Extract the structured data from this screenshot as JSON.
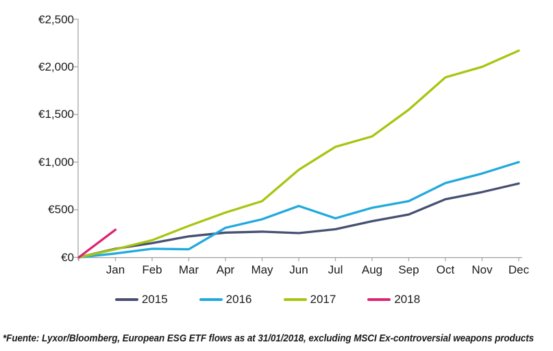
{
  "chart_data": {
    "type": "line",
    "title": "",
    "xlabel": "",
    "ylabel": "",
    "grid": false,
    "legend_position": "bottom",
    "x_labels": [
      "",
      "Jan",
      "Feb",
      "Mar",
      "Apr",
      "May",
      "Jun",
      "Jul",
      "Aug",
      "Sep",
      "Oct",
      "Nov",
      "Dec"
    ],
    "y_axis": {
      "tick_labels_top_down": [
        "€2,500",
        "€2,000",
        "€1,500",
        "€1,000",
        "€500",
        "€0"
      ],
      "ylim": [
        0,
        2500
      ],
      "tick_step": 500
    },
    "axis_color": "#A6A6A6",
    "series": [
      {
        "name": "2015",
        "color": "#474F72",
        "values": [
          0,
          90,
          150,
          220,
          260,
          270,
          255,
          295,
          380,
          450,
          610,
          685,
          775
        ]
      },
      {
        "name": "2016",
        "color": "#22A9DC",
        "values": [
          0,
          40,
          90,
          85,
          310,
          400,
          540,
          410,
          520,
          590,
          780,
          880,
          1000
        ]
      },
      {
        "name": "2017",
        "color": "#A7C510",
        "values": [
          0,
          85,
          180,
          330,
          470,
          590,
          920,
          1160,
          1270,
          1550,
          1890,
          2000,
          2170
        ]
      },
      {
        "name": "2018",
        "color": "#DB2572",
        "values": [
          0,
          290
        ]
      }
    ]
  },
  "footnote": "*Fuente: Lyxor/Bloomberg, European ESG ETF flows as at 31/01/2018, excluding MSCI Ex-controversial weapons products"
}
